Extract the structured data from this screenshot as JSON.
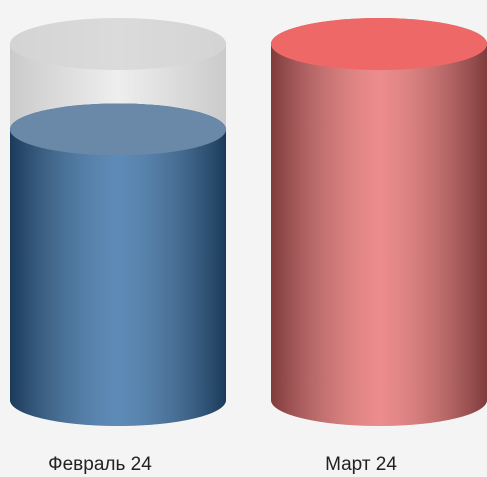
{
  "chart_data": {
    "type": "cylinder",
    "categories": [
      "Февраль 24",
      "Март 24"
    ],
    "values": [
      76,
      100
    ],
    "colors": [
      "#2f6aa3",
      "#e86b6b"
    ]
  }
}
